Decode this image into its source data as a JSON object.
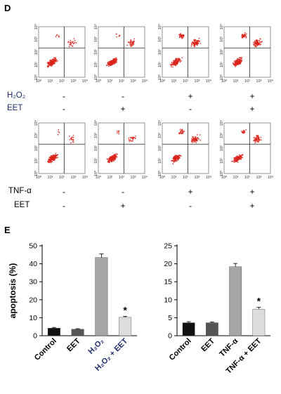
{
  "panel_d_label": "D",
  "panel_e_label": "E",
  "flow": {
    "x_ticks": [
      "10⁰",
      "10¹",
      "10²",
      "10³",
      "10⁴"
    ],
    "y_ticks": [
      "10⁰",
      "10¹",
      "10²",
      "10³",
      "10⁴"
    ],
    "row1": {
      "h2o2_label": "H₂O₂",
      "eet_label": "EET",
      "h2o2_marks": [
        "-",
        "-",
        "+",
        "+"
      ],
      "eet_marks": [
        "-",
        "+",
        "-",
        "+"
      ]
    },
    "row2": {
      "tnf_label": "TNF-α",
      "eet_label": "EET",
      "tnf_marks": [
        "-",
        "-",
        "+",
        "+"
      ],
      "eet_marks": [
        "-",
        "+",
        "-",
        "+"
      ]
    }
  },
  "chart_data": [
    {
      "type": "bar",
      "categories": [
        "Control",
        "EET",
        "H₂O₂",
        "H₂O₂ + EET"
      ],
      "values": [
        4.2,
        3.6,
        43.5,
        10.2
      ],
      "errors": [
        0.4,
        0.3,
        2.0,
        0.6
      ],
      "colors": [
        "#111111",
        "#555555",
        "#a6a6a6",
        "#dcdcdc"
      ],
      "ylabel": "apoptosis (%)",
      "ylim": [
        0,
        50
      ],
      "yticks": [
        0,
        10,
        20,
        30,
        40,
        50
      ],
      "annotations": [
        {
          "category": "H₂O₂ + EET",
          "text": "*"
        }
      ]
    },
    {
      "type": "bar",
      "categories": [
        "Control",
        "EET",
        "TNF-α",
        "TNF-α + EET"
      ],
      "values": [
        3.6,
        3.6,
        19.2,
        7.4
      ],
      "errors": [
        0.3,
        0.2,
        0.9,
        0.5
      ],
      "colors": [
        "#111111",
        "#555555",
        "#a6a6a6",
        "#dcdcdc"
      ],
      "ylabel": "",
      "ylim": [
        0,
        25
      ],
      "yticks": [
        0,
        5,
        10,
        15,
        20,
        25
      ],
      "annotations": [
        {
          "category": "TNF-α + EET",
          "text": "*"
        }
      ]
    }
  ]
}
